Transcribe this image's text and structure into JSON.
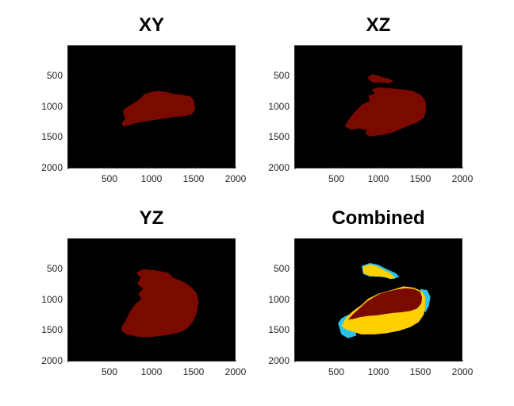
{
  "figure": {
    "background": "#ffffff",
    "axes_background": "#000000"
  },
  "chart_data": [
    {
      "type": "heatmap",
      "title": "XY",
      "xlim": [
        0,
        2000
      ],
      "ylim": [
        2000,
        0
      ],
      "xticks": [
        500,
        1000,
        1500,
        2000
      ],
      "yticks": [
        500,
        1000,
        1500,
        2000
      ],
      "y_direction": "reversed",
      "grid": false,
      "regions": [
        {
          "color": "#7a0a00",
          "label": "mask",
          "polygon": [
            [
              660,
              1050
            ],
            [
              740,
              980
            ],
            [
              800,
              930
            ],
            [
              870,
              860
            ],
            [
              920,
              790
            ],
            [
              1000,
              760
            ],
            [
              1080,
              740
            ],
            [
              1180,
              760
            ],
            [
              1270,
              790
            ],
            [
              1350,
              800
            ],
            [
              1460,
              830
            ],
            [
              1500,
              880
            ],
            [
              1510,
              950
            ],
            [
              1520,
              1050
            ],
            [
              1480,
              1120
            ],
            [
              1400,
              1150
            ],
            [
              1300,
              1160
            ],
            [
              1200,
              1180
            ],
            [
              1100,
              1200
            ],
            [
              1000,
              1220
            ],
            [
              900,
              1240
            ],
            [
              800,
              1270
            ],
            [
              700,
              1310
            ],
            [
              660,
              1320
            ],
            [
              650,
              1250
            ],
            [
              690,
              1200
            ],
            [
              670,
              1130
            ]
          ]
        }
      ]
    },
    {
      "type": "heatmap",
      "title": "XZ",
      "xlim": [
        0,
        2000
      ],
      "ylim": [
        2000,
        0
      ],
      "xticks": [
        500,
        1000,
        1500,
        2000
      ],
      "yticks": [
        500,
        1000,
        1500,
        2000
      ],
      "y_direction": "reversed",
      "grid": false,
      "regions": [
        {
          "color": "#7a0a00",
          "label": "mask",
          "polygon": [
            [
              600,
              1320
            ],
            [
              650,
              1200
            ],
            [
              720,
              1080
            ],
            [
              810,
              960
            ],
            [
              900,
              900
            ],
            [
              880,
              820
            ],
            [
              960,
              780
            ],
            [
              920,
              720
            ],
            [
              1000,
              680
            ],
            [
              1150,
              700
            ],
            [
              1300,
              720
            ],
            [
              1400,
              740
            ],
            [
              1500,
              800
            ],
            [
              1560,
              900
            ],
            [
              1570,
              1050
            ],
            [
              1540,
              1180
            ],
            [
              1470,
              1250
            ],
            [
              1370,
              1300
            ],
            [
              1300,
              1340
            ],
            [
              1200,
              1400
            ],
            [
              1100,
              1440
            ],
            [
              1000,
              1460
            ],
            [
              900,
              1480
            ],
            [
              850,
              1440
            ],
            [
              860,
              1380
            ],
            [
              760,
              1350
            ],
            [
              680,
              1370
            ]
          ]
        },
        {
          "color": "#7a0a00",
          "label": "mask",
          "polygon": [
            [
              870,
              520
            ],
            [
              930,
              470
            ],
            [
              990,
              490
            ],
            [
              1050,
              520
            ],
            [
              1120,
              540
            ],
            [
              1180,
              580
            ],
            [
              1120,
              620
            ],
            [
              1040,
              600
            ],
            [
              960,
              610
            ],
            [
              900,
              580
            ]
          ]
        }
      ]
    },
    {
      "type": "heatmap",
      "title": "YZ",
      "xlim": [
        0,
        2000
      ],
      "ylim": [
        2000,
        0
      ],
      "xticks": [
        500,
        1000,
        1500,
        2000
      ],
      "yticks": [
        500,
        1000,
        1500,
        2000
      ],
      "y_direction": "reversed",
      "grid": false,
      "regions": [
        {
          "color": "#7a0a00",
          "label": "mask",
          "polygon": [
            [
              650,
              1420
            ],
            [
              700,
              1320
            ],
            [
              740,
              1200
            ],
            [
              800,
              1080
            ],
            [
              880,
              980
            ],
            [
              840,
              900
            ],
            [
              900,
              820
            ],
            [
              830,
              740
            ],
            [
              870,
              640
            ],
            [
              820,
              560
            ],
            [
              900,
              500
            ],
            [
              1050,
              520
            ],
            [
              1200,
              560
            ],
            [
              1260,
              640
            ],
            [
              1400,
              720
            ],
            [
              1480,
              800
            ],
            [
              1540,
              900
            ],
            [
              1560,
              1040
            ],
            [
              1540,
              1200
            ],
            [
              1500,
              1340
            ],
            [
              1440,
              1440
            ],
            [
              1380,
              1500
            ],
            [
              1300,
              1540
            ],
            [
              1150,
              1580
            ],
            [
              1000,
              1600
            ],
            [
              850,
              1600
            ],
            [
              700,
              1560
            ],
            [
              640,
              1500
            ]
          ]
        }
      ]
    },
    {
      "type": "heatmap",
      "title": "Combined",
      "xlim": [
        0,
        2000
      ],
      "ylim": [
        2000,
        0
      ],
      "xticks": [
        500,
        1000,
        1500,
        2000
      ],
      "yticks": [
        500,
        1000,
        1500,
        2000
      ],
      "y_direction": "reversed",
      "grid": false,
      "regions": [
        {
          "color": "#29c4ee",
          "label": "cyan",
          "polygon": [
            [
              520,
              1380
            ],
            [
              560,
              1300
            ],
            [
              640,
              1240
            ],
            [
              700,
              1300
            ],
            [
              720,
              1480
            ],
            [
              740,
              1580
            ],
            [
              640,
              1620
            ],
            [
              560,
              1560
            ]
          ]
        },
        {
          "color": "#29c4ee",
          "label": "cyan",
          "polygon": [
            [
              800,
              450
            ],
            [
              900,
              400
            ],
            [
              1000,
              430
            ],
            [
              1100,
              500
            ],
            [
              1200,
              560
            ],
            [
              1250,
              620
            ],
            [
              1180,
              660
            ],
            [
              1100,
              640
            ],
            [
              1000,
              620
            ],
            [
              900,
              620
            ],
            [
              820,
              580
            ]
          ]
        },
        {
          "color": "#29c4ee",
          "label": "cyan",
          "polygon": [
            [
              1500,
              820
            ],
            [
              1580,
              840
            ],
            [
              1620,
              950
            ],
            [
              1600,
              1100
            ],
            [
              1560,
              1200
            ],
            [
              1520,
              1150
            ]
          ]
        },
        {
          "color": "#ffd000",
          "label": "yellow",
          "polygon": [
            [
              820,
              460
            ],
            [
              900,
              420
            ],
            [
              980,
              450
            ],
            [
              1060,
              510
            ],
            [
              1150,
              570
            ],
            [
              1200,
              640
            ],
            [
              1140,
              660
            ],
            [
              1060,
              620
            ],
            [
              960,
              620
            ],
            [
              880,
              600
            ],
            [
              820,
              560
            ]
          ]
        },
        {
          "color": "#ffd000",
          "label": "yellow",
          "polygon": [
            [
              560,
              1420
            ],
            [
              620,
              1280
            ],
            [
              700,
              1180
            ],
            [
              800,
              1080
            ],
            [
              880,
              980
            ],
            [
              1000,
              900
            ],
            [
              1100,
              860
            ],
            [
              1200,
              820
            ],
            [
              1300,
              780
            ],
            [
              1420,
              800
            ],
            [
              1520,
              860
            ],
            [
              1560,
              960
            ],
            [
              1560,
              1100
            ],
            [
              1540,
              1240
            ],
            [
              1480,
              1360
            ],
            [
              1380,
              1440
            ],
            [
              1250,
              1500
            ],
            [
              1100,
              1540
            ],
            [
              950,
              1560
            ],
            [
              800,
              1560
            ],
            [
              700,
              1520
            ],
            [
              620,
              1480
            ]
          ]
        },
        {
          "color": "#7a0a00",
          "label": "overlap",
          "polygon": [
            [
              640,
              1320
            ],
            [
              700,
              1230
            ],
            [
              780,
              1130
            ],
            [
              860,
              1030
            ],
            [
              940,
              960
            ],
            [
              1020,
              900
            ],
            [
              1120,
              860
            ],
            [
              1220,
              830
            ],
            [
              1320,
              810
            ],
            [
              1420,
              820
            ],
            [
              1500,
              870
            ],
            [
              1520,
              960
            ],
            [
              1510,
              1060
            ],
            [
              1460,
              1140
            ],
            [
              1380,
              1180
            ],
            [
              1280,
              1200
            ],
            [
              1180,
              1210
            ],
            [
              1080,
              1230
            ],
            [
              980,
              1250
            ],
            [
              880,
              1260
            ],
            [
              780,
              1280
            ],
            [
              700,
              1310
            ]
          ]
        }
      ]
    }
  ]
}
